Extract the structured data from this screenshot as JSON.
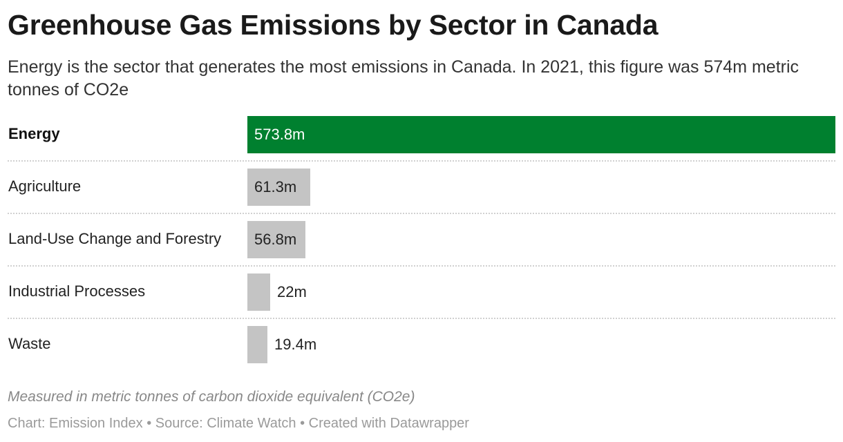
{
  "header": {
    "title": "Greenhouse Gas Emissions by Sector in Canada",
    "subtitle": "Energy is the sector that generates the most emissions in Canada. In 2021, this figure was 574m metric tonnes of CO2e"
  },
  "chart_data": {
    "type": "bar",
    "orientation": "horizontal",
    "categories": [
      "Energy",
      "Agriculture",
      "Land-Use Change and Forestry",
      "Industrial Processes",
      "Waste"
    ],
    "values": [
      573.8,
      61.3,
      56.8,
      22,
      19.4
    ],
    "value_labels": [
      "573.8m",
      "61.3m",
      "56.8m",
      "22m",
      "19.4m"
    ],
    "highlight": "Energy",
    "xlim": [
      0,
      573.8
    ],
    "grid": false,
    "colors": {
      "highlight": "#00802f",
      "default": "#c4c4c4",
      "label_on_highlight": "#ffffff",
      "label_default": "#222222"
    }
  },
  "footer": {
    "note": "Measured in metric tonnes of carbon dioxide equivalent (CO2e)",
    "credits": "Chart: Emission Index • Source: Climate Watch • Created with Datawrapper"
  }
}
